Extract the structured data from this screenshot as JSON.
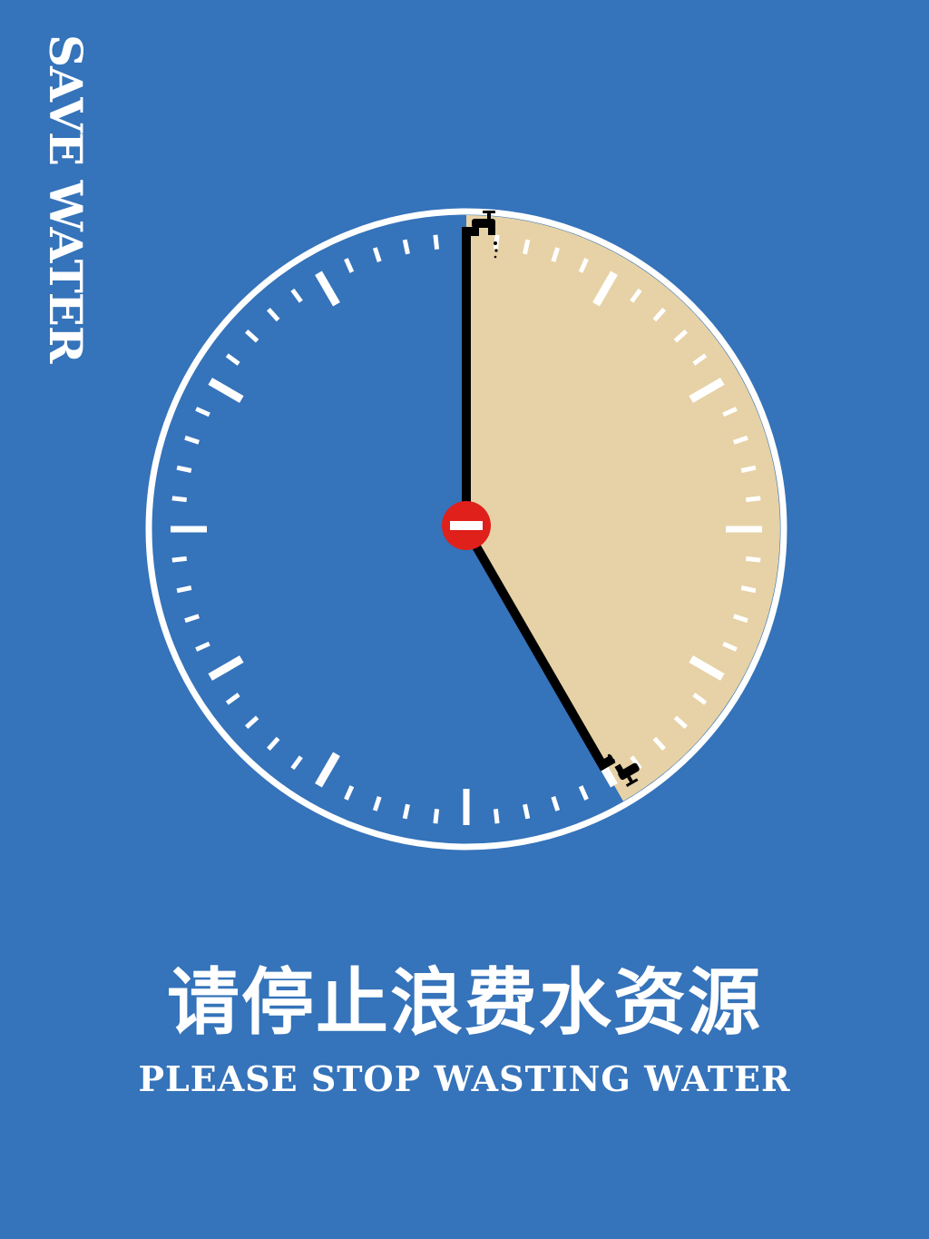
{
  "poster": {
    "side_title": "SAVE WATER",
    "headline_cn": "请停止浪费水资源",
    "headline_en": "PLEASE STOP WASTING WATER"
  },
  "clock": {
    "icons": {
      "center": "no-entry-sign-icon",
      "top_tap": "water-tap-icon",
      "bottom_tap": "water-tap-icon"
    },
    "elapsed_minutes": 25
  },
  "colors": {
    "background": "#3573ba",
    "elapsed_fill": "#e6d2a6",
    "foreground": "#ffffff",
    "hand": "#000000",
    "no_entry_red": "#e0201b"
  }
}
